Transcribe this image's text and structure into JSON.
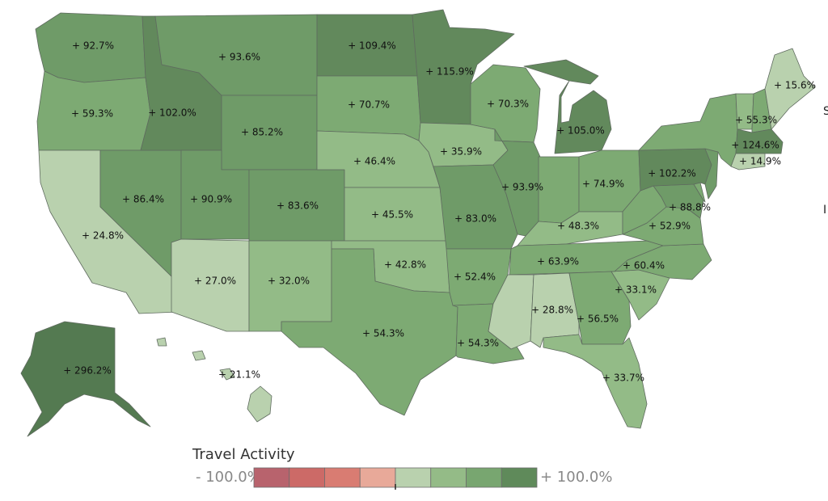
{
  "colors": {
    "v1": "#b9d1ae",
    "v2": "#93bb87",
    "v3": "#7daa73",
    "v4": "#6f9b68",
    "v5": "#62895c",
    "v6": "#547a51",
    "legend": [
      "#b8636d",
      "#cc6a67",
      "#d97c72",
      "#e8a999",
      "#b9d1ae",
      "#94bb87",
      "#78a670",
      "#5f8a5a"
    ]
  },
  "legend": {
    "title": "Travel Activity",
    "min_label": "- 100.0%",
    "max_label": "+ 100.0%"
  },
  "edge_chars": [
    "S",
    "I"
  ],
  "states": [
    {
      "id": "WA",
      "label": "+ 92.7%",
      "value": 92.7
    },
    {
      "id": "OR",
      "label": "+ 59.3%",
      "value": 59.3
    },
    {
      "id": "CA",
      "label": "+ 24.8%",
      "value": 24.8
    },
    {
      "id": "NV",
      "label": "+ 86.4%",
      "value": 86.4
    },
    {
      "id": "ID",
      "label": "+ 102.0%",
      "value": 102.0
    },
    {
      "id": "MT",
      "label": "+ 93.6%",
      "value": 93.6
    },
    {
      "id": "WY",
      "label": "+ 85.2%",
      "value": 85.2
    },
    {
      "id": "UT",
      "label": "+ 90.9%",
      "value": 90.9
    },
    {
      "id": "CO",
      "label": "+ 83.6%",
      "value": 83.6
    },
    {
      "id": "AZ",
      "label": "+ 27.0%",
      "value": 27.0
    },
    {
      "id": "NM",
      "label": "+ 32.0%",
      "value": 32.0
    },
    {
      "id": "ND",
      "label": "+ 109.4%",
      "value": 109.4
    },
    {
      "id": "SD",
      "label": "+ 70.7%",
      "value": 70.7
    },
    {
      "id": "NE",
      "label": "+ 46.4%",
      "value": 46.4
    },
    {
      "id": "KS",
      "label": "+ 45.5%",
      "value": 45.5
    },
    {
      "id": "OK",
      "label": "+ 42.8%",
      "value": 42.8
    },
    {
      "id": "TX",
      "label": "+ 54.3%",
      "value": 54.3
    },
    {
      "id": "MN",
      "label": "+ 115.9%",
      "value": 115.9
    },
    {
      "id": "IA",
      "label": "+ 35.9%",
      "value": 35.9
    },
    {
      "id": "MO",
      "label": "+ 83.0%",
      "value": 83.0
    },
    {
      "id": "AR",
      "label": "+ 52.4%",
      "value": 52.4
    },
    {
      "id": "LA",
      "label": "+ 54.3%",
      "value": 54.3
    },
    {
      "id": "WI",
      "label": "+ 70.3%",
      "value": 70.3
    },
    {
      "id": "IL",
      "label": "+ 93.9%",
      "value": 93.9
    },
    {
      "id": "MI",
      "label": "+ 105.0%",
      "value": 105.0
    },
    {
      "id": "IN",
      "label": "",
      "value": null
    },
    {
      "id": "OH",
      "label": "+ 74.9%",
      "value": 74.9
    },
    {
      "id": "KY",
      "label": "+ 48.3%",
      "value": 48.3
    },
    {
      "id": "TN",
      "label": "+ 63.9%",
      "value": 63.9
    },
    {
      "id": "MS",
      "label": "",
      "value": null
    },
    {
      "id": "AL",
      "label": "+ 28.8%",
      "value": 28.8
    },
    {
      "id": "GA",
      "label": "+ 56.5%",
      "value": 56.5
    },
    {
      "id": "FL",
      "label": "+ 33.7%",
      "value": 33.7
    },
    {
      "id": "SC",
      "label": "+ 33.1%",
      "value": 33.1
    },
    {
      "id": "NC",
      "label": "+ 60.4%",
      "value": 60.4
    },
    {
      "id": "VA",
      "label": "+ 52.9%",
      "value": 52.9
    },
    {
      "id": "WV",
      "label": "",
      "value": null
    },
    {
      "id": "MD",
      "label": "+ 88.8%",
      "value": 88.8
    },
    {
      "id": "DE",
      "label": "",
      "value": null
    },
    {
      "id": "NJ",
      "label": "",
      "value": null
    },
    {
      "id": "PA",
      "label": "+ 102.2%",
      "value": 102.2
    },
    {
      "id": "NY",
      "label": "",
      "value": null
    },
    {
      "id": "CT",
      "label": "+ 14.9%",
      "value": 14.9
    },
    {
      "id": "MA",
      "label": "+ 124.6%",
      "value": 124.6
    },
    {
      "id": "VT",
      "label": "",
      "value": null
    },
    {
      "id": "NH",
      "label": "+ 55.3%",
      "value": 55.3
    },
    {
      "id": "ME",
      "label": "+ 15.6%",
      "value": 15.6
    },
    {
      "id": "AK",
      "label": "+ 296.2%",
      "value": 296.2
    },
    {
      "id": "HI",
      "label": "+ 21.1%",
      "value": 21.1
    }
  ]
}
